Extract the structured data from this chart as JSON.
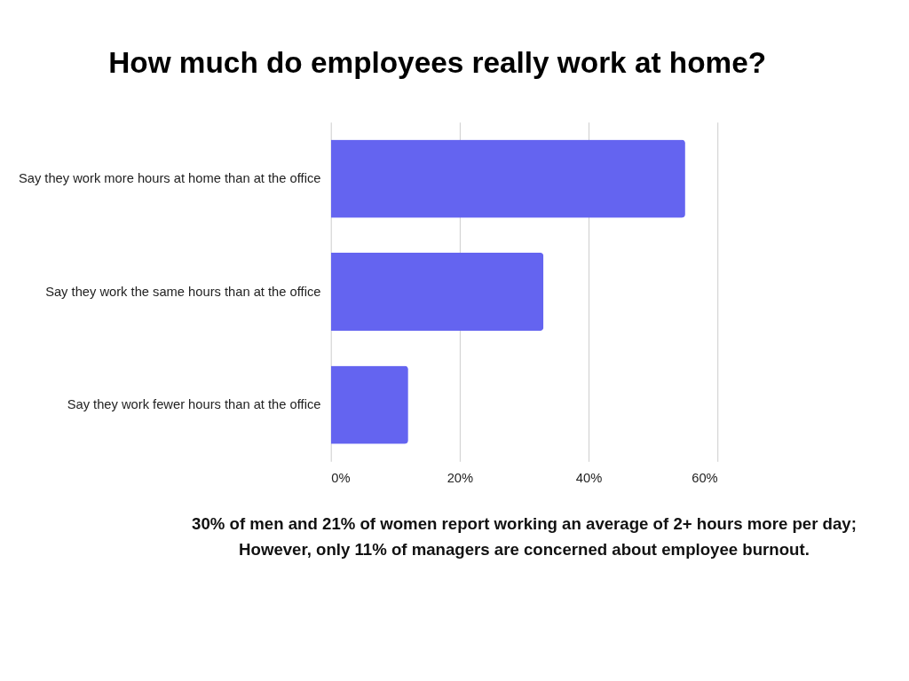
{
  "chart_data": {
    "type": "bar",
    "orientation": "horizontal",
    "title": "How much do employees really work at home?",
    "categories": [
      "Say they work more hours at home than at the office",
      "Say they work the same hours than at the office",
      "Say they work fewer hours than at the office"
    ],
    "values": [
      55,
      33,
      12
    ],
    "color": "#6464f0",
    "xlim": [
      0,
      60
    ],
    "xticks": [
      {
        "value": 0,
        "label": "0%"
      },
      {
        "value": 20,
        "label": "20%"
      },
      {
        "value": 40,
        "label": "40%"
      },
      {
        "value": 60,
        "label": "60%"
      }
    ],
    "grid": "x",
    "annotations": [
      "30% of men and 21% of women report working an average of 2+ hours more per day;",
      "However, only 11% of managers are concerned about employee burnout."
    ]
  }
}
